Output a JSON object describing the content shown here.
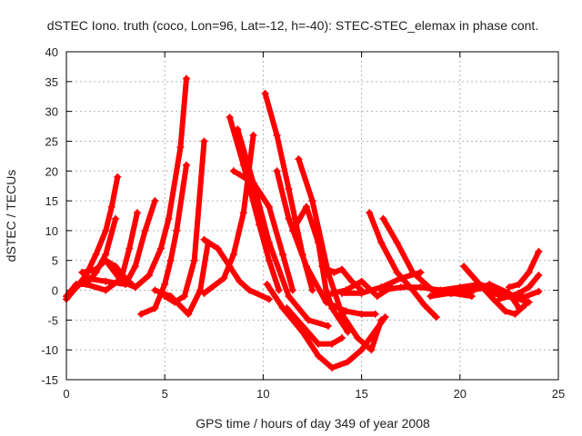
{
  "chart_data": {
    "type": "line",
    "title": "dSTEC Iono. truth (coco, Lon=96, Lat=-12, h=-40): STEC-STEC_elemax in phase cont.",
    "xlabel": "GPS time / hours of day 349 of year 2008",
    "ylabel": "dSTEC  / TECUs",
    "xlim": [
      0,
      25
    ],
    "ylim": [
      -15,
      40
    ],
    "x_ticks": [
      "0",
      "5",
      "10",
      "15",
      "20",
      "25"
    ],
    "y_ticks": [
      "-15",
      "-10",
      "-5",
      "0",
      "5",
      "10",
      "15",
      "20",
      "25",
      "30",
      "35",
      "40"
    ],
    "grid": true,
    "legend": "none",
    "marker": "plus",
    "color": "#ff0000",
    "series": [
      {
        "x": [
          0.0,
          0.5,
          1.0,
          1.5,
          2.0,
          2.3,
          2.6
        ],
        "values": [
          -1.5,
          0.5,
          2.5,
          6.0,
          10.0,
          14.0,
          19.0
        ]
      },
      {
        "x": [
          0.0,
          0.5,
          1.0,
          1.5,
          2.0,
          2.5
        ],
        "values": [
          -1.0,
          1.0,
          1.0,
          3.0,
          6.0,
          12.0
        ]
      },
      {
        "x": [
          0.2,
          1.0,
          2.0,
          3.0,
          3.5,
          4.0,
          4.5
        ],
        "values": [
          -0.5,
          2.0,
          1.5,
          1.0,
          4.0,
          10.0,
          15.0
        ]
      },
      {
        "x": [
          1.0,
          2.0,
          2.8,
          3.2,
          3.6
        ],
        "values": [
          1.0,
          0.0,
          2.0,
          7.0,
          13.0
        ]
      },
      {
        "x": [
          0.8,
          1.5,
          2.0,
          2.5,
          3.0,
          3.5
        ],
        "values": [
          3.0,
          3.5,
          5.0,
          4.0,
          2.0,
          0.5
        ]
      },
      {
        "x": [
          2.0,
          2.8,
          3.5,
          4.2,
          4.8,
          5.2,
          5.8,
          6.1
        ],
        "values": [
          5.0,
          1.5,
          0.5,
          2.5,
          7.0,
          12.0,
          24.0,
          35.5
        ]
      },
      {
        "x": [
          3.8,
          4.5,
          5.0,
          5.3,
          5.6,
          6.1
        ],
        "values": [
          -4.0,
          -3.0,
          1.0,
          5.0,
          10.0,
          21.0
        ]
      },
      {
        "x": [
          5.0,
          5.5,
          6.0,
          6.5,
          7.0
        ],
        "values": [
          -1.0,
          -2.0,
          -1.0,
          5.0,
          25.0
        ]
      },
      {
        "x": [
          4.5,
          5.3,
          6.2,
          6.8,
          7.2
        ],
        "values": [
          0.0,
          -1.0,
          -4.0,
          0.0,
          8.0
        ]
      },
      {
        "x": [
          7.0,
          7.7,
          8.3,
          8.8,
          9.3,
          10.3
        ],
        "values": [
          8.5,
          7.0,
          4.0,
          1.5,
          0.0,
          -1.5
        ]
      },
      {
        "x": [
          7.0,
          8.0,
          8.5,
          9.0,
          9.5
        ],
        "values": [
          -0.5,
          2.0,
          6.0,
          13.0,
          26.0
        ]
      },
      {
        "x": [
          8.3,
          9.0,
          9.8,
          10.3,
          10.8
        ],
        "values": [
          29.0,
          21.0,
          11.0,
          5.0,
          0.0
        ]
      },
      {
        "x": [
          8.7,
          9.5,
          10.3,
          11.3,
          12.3,
          13.3
        ],
        "values": [
          27.0,
          18.0,
          8.0,
          -1.0,
          -5.0,
          -6.0
        ]
      },
      {
        "x": [
          8.5,
          9.5,
          10.3,
          11.0,
          11.5
        ],
        "values": [
          20.0,
          18.0,
          14.0,
          6.0,
          0.0
        ]
      },
      {
        "x": [
          10.1,
          10.7,
          11.3,
          12.0,
          12.5
        ],
        "values": [
          33.0,
          26.0,
          17.0,
          6.0,
          0.0
        ]
      },
      {
        "x": [
          10.7,
          11.3,
          12.2,
          13.2,
          14.2,
          15.0,
          15.7
        ],
        "values": [
          20.0,
          12.0,
          4.0,
          -2.0,
          -3.5,
          -4.0,
          -4.0
        ]
      },
      {
        "x": [
          11.5,
          12.2,
          12.8,
          13.2,
          13.5,
          14.3
        ],
        "values": [
          10.0,
          14.0,
          8.0,
          0.0,
          -3.0,
          -7.0
        ]
      },
      {
        "x": [
          11.2,
          12.0,
          12.8,
          13.5,
          14.0
        ],
        "values": [
          -3.0,
          -6.0,
          -9.0,
          -9.0,
          -8.0
        ]
      },
      {
        "x": [
          11.8,
          12.5,
          13.3,
          14.0,
          14.8,
          15.5,
          16.0
        ],
        "values": [
          22.0,
          15.0,
          3.0,
          -4.0,
          -8.0,
          -10.0,
          -5.0
        ]
      },
      {
        "x": [
          10.2,
          11.0,
          12.0,
          12.8,
          13.5,
          14.3,
          15.0,
          16.2
        ],
        "values": [
          1.0,
          -3.0,
          -7.0,
          -11.0,
          -13.0,
          -12.0,
          -10.0,
          -4.5
        ]
      },
      {
        "x": [
          13.0,
          13.6,
          14.0,
          14.5,
          15.0
        ],
        "values": [
          4.0,
          3.0,
          3.5,
          1.5,
          0.0
        ]
      },
      {
        "x": [
          13.5,
          14.2,
          15.0,
          15.8,
          16.5
        ],
        "values": [
          -0.5,
          0.0,
          1.5,
          -1.0,
          0.5
        ]
      },
      {
        "x": [
          15.4,
          16.0,
          16.8,
          17.6,
          18.2,
          18.8
        ],
        "values": [
          13.0,
          8.0,
          3.0,
          0.0,
          -2.5,
          -4.5
        ]
      },
      {
        "x": [
          16.1,
          16.8,
          17.6,
          18.6,
          19.6,
          20.6
        ],
        "values": [
          12.0,
          8.0,
          3.0,
          0.0,
          -0.5,
          -1.0
        ]
      },
      {
        "x": [
          14.0,
          15.0,
          16.0,
          17.0,
          18.0
        ],
        "values": [
          -0.5,
          -0.5,
          0.5,
          2.0,
          3.0
        ]
      },
      {
        "x": [
          16.0,
          17.0,
          18.0,
          19.0,
          20.0,
          21.0,
          22.0
        ],
        "values": [
          0.0,
          0.5,
          0.5,
          0.0,
          0.5,
          1.0,
          0.0
        ]
      },
      {
        "x": [
          18.5,
          19.5,
          20.5,
          21.5,
          22.5,
          23.5
        ],
        "values": [
          -1.0,
          -0.5,
          0.0,
          0.5,
          -1.0,
          -2.0
        ]
      },
      {
        "x": [
          20.0,
          20.7,
          21.5,
          22.5,
          23.0
        ],
        "values": [
          -0.5,
          0.0,
          1.0,
          -0.5,
          -3.0
        ]
      },
      {
        "x": [
          20.2,
          21.0,
          21.7,
          22.3,
          22.8,
          23.3
        ],
        "values": [
          4.0,
          1.0,
          -1.5,
          -3.5,
          -4.0,
          -2.5
        ]
      },
      {
        "x": [
          22.5,
          23.0,
          23.5,
          24.0
        ],
        "values": [
          0.5,
          1.0,
          3.0,
          6.5
        ]
      },
      {
        "x": [
          22.0,
          22.5,
          23.0,
          23.5,
          24.0
        ],
        "values": [
          -1.5,
          -1.0,
          -0.5,
          0.5,
          2.5
        ]
      },
      {
        "x": [
          21.5,
          22.5,
          23.2,
          24.0
        ],
        "values": [
          -0.5,
          -1.0,
          -1.2,
          -0.2
        ]
      }
    ]
  }
}
